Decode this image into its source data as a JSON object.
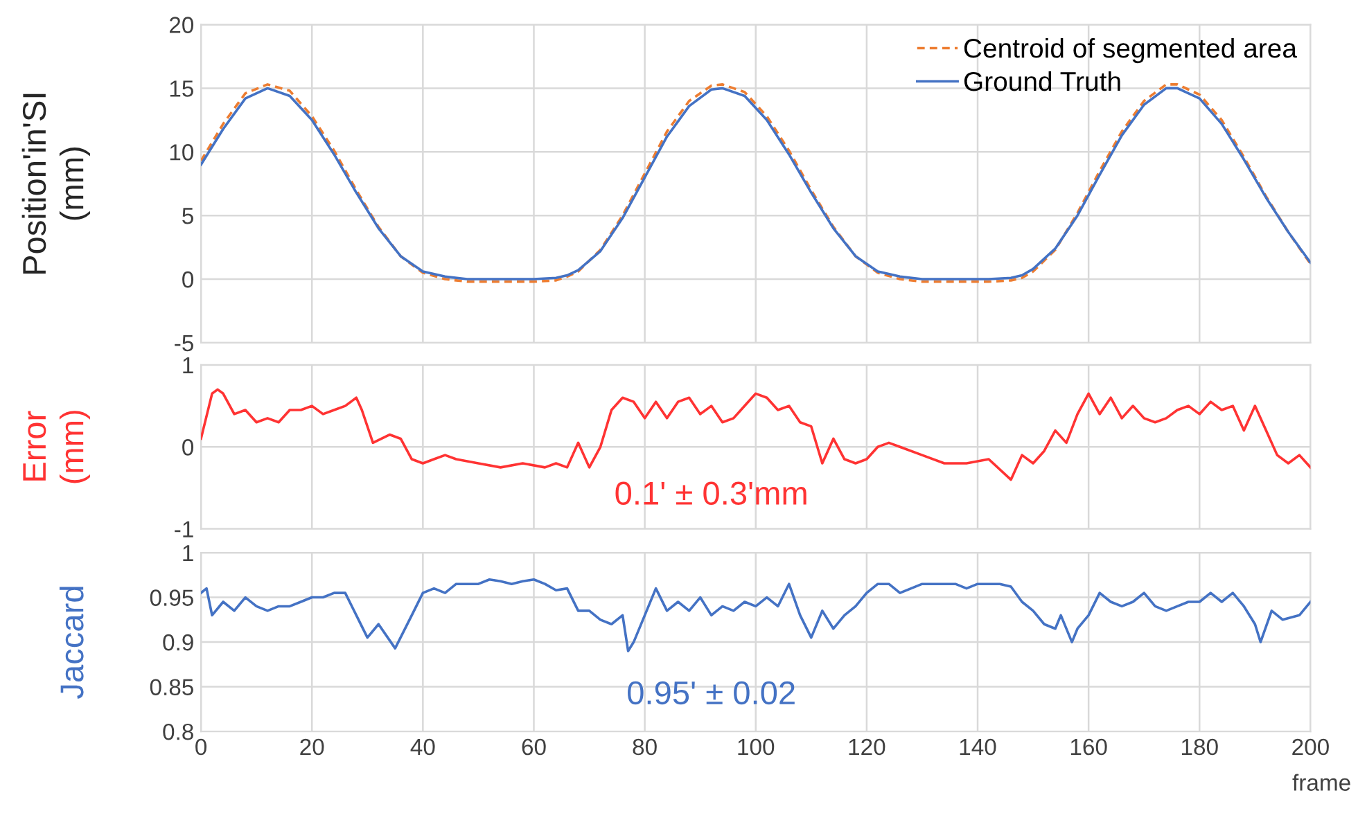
{
  "chart_data": [
    {
      "type": "line",
      "ylabel": "Position'in'SI\n(mm)",
      "legend": "top right",
      "grid": true,
      "tick_labels": "y",
      "xlim": [
        0,
        200
      ],
      "xticks": [
        0,
        20,
        40,
        60,
        80,
        100,
        120,
        140,
        160,
        180,
        200
      ],
      "ylim": [
        -5,
        20
      ],
      "yticks": [
        -5,
        0,
        5,
        10,
        15,
        20
      ],
      "x": [
        0,
        4,
        8,
        12,
        16,
        20,
        24,
        28,
        32,
        36,
        40,
        44,
        48,
        52,
        56,
        60,
        64,
        66,
        68,
        72,
        76,
        80,
        84,
        88,
        92,
        94,
        98,
        102,
        106,
        110,
        114,
        118,
        122,
        126,
        130,
        134,
        138,
        142,
        146,
        148,
        150,
        154,
        158,
        162,
        166,
        170,
        174,
        176,
        180,
        184,
        188,
        192,
        196,
        200
      ],
      "series": [
        {
          "name": "Centroid of segmented area",
          "color": "#ed7d31",
          "line_style": "dashed",
          "values": [
            9.3,
            12.2,
            14.6,
            15.3,
            14.8,
            12.8,
            10.1,
            7.0,
            4.1,
            1.8,
            0.5,
            0.0,
            -0.2,
            -0.2,
            -0.2,
            -0.2,
            -0.1,
            0.2,
            0.6,
            2.3,
            5.0,
            8.3,
            11.6,
            14.0,
            15.2,
            15.3,
            14.7,
            12.8,
            10.1,
            7.0,
            4.1,
            1.8,
            0.5,
            0.0,
            -0.2,
            -0.2,
            -0.2,
            -0.2,
            -0.1,
            0.1,
            0.6,
            2.3,
            5.2,
            8.5,
            11.6,
            14.0,
            15.3,
            15.3,
            14.5,
            12.5,
            9.6,
            6.5,
            3.7,
            1.2
          ]
        },
        {
          "name": "Ground Truth",
          "color": "#4472c4",
          "line_style": "solid",
          "values": [
            9,
            11.8,
            14.2,
            15,
            14.4,
            12.5,
            9.8,
            6.8,
            4,
            1.8,
            0.6,
            0.2,
            0,
            0,
            0,
            0,
            0.1,
            0.3,
            0.7,
            2.2,
            4.8,
            8,
            11.2,
            13.6,
            14.9,
            15,
            14.4,
            12.5,
            9.8,
            6.8,
            4,
            1.8,
            0.6,
            0.2,
            0,
            0,
            0,
            0,
            0.1,
            0.3,
            0.8,
            2.4,
            5,
            8.2,
            11.3,
            13.7,
            15,
            15,
            14.2,
            12.2,
            9.4,
            6.4,
            3.7,
            1.3
          ]
        }
      ]
    },
    {
      "type": "line",
      "ylabel": "Error\n(mm)",
      "grid": true,
      "tick_labels": "y",
      "xlim": [
        0,
        200
      ],
      "xticks": [
        0,
        20,
        40,
        60,
        80,
        100,
        120,
        140,
        160,
        180,
        200
      ],
      "ylim": [
        -1,
        1
      ],
      "yticks": [
        -1,
        0,
        1
      ],
      "annotations": [
        "0.1' ± 0.3'mm"
      ],
      "x": [
        0,
        2,
        3,
        4,
        6,
        8,
        10,
        12,
        14,
        16,
        18,
        20,
        22,
        24,
        26,
        28,
        29,
        31,
        34,
        36,
        38,
        40,
        42,
        44,
        46,
        50,
        54,
        58,
        62,
        64,
        66,
        68,
        70,
        72,
        74,
        76,
        78,
        80,
        82,
        84,
        86,
        88,
        90,
        92,
        94,
        96,
        98,
        100,
        102,
        104,
        106,
        108,
        110,
        112,
        114,
        116,
        118,
        120,
        122,
        124,
        126,
        130,
        134,
        138,
        142,
        146,
        148,
        150,
        152,
        154,
        156,
        158,
        160,
        162,
        164,
        166,
        168,
        170,
        172,
        174,
        176,
        178,
        180,
        182,
        184,
        186,
        188,
        190,
        192,
        194,
        196,
        198,
        200
      ],
      "series": [
        {
          "color": "#ff3333",
          "values": [
            0.1,
            0.65,
            0.7,
            0.65,
            0.4,
            0.45,
            0.3,
            0.35,
            0.3,
            0.45,
            0.45,
            0.5,
            0.4,
            0.45,
            0.5,
            0.6,
            0.45,
            0.05,
            0.15,
            0.1,
            -0.15,
            -0.2,
            -0.15,
            -0.1,
            -0.15,
            -0.2,
            -0.25,
            -0.2,
            -0.25,
            -0.2,
            -0.25,
            0.05,
            -0.25,
            0,
            0.45,
            0.6,
            0.55,
            0.35,
            0.55,
            0.35,
            0.55,
            0.6,
            0.4,
            0.5,
            0.3,
            0.35,
            0.5,
            0.65,
            0.6,
            0.45,
            0.5,
            0.3,
            0.25,
            -0.2,
            0.1,
            -0.15,
            -0.2,
            -0.15,
            0,
            0.05,
            0,
            -0.1,
            -0.2,
            -0.2,
            -0.15,
            -0.4,
            -0.1,
            -0.2,
            -0.05,
            0.2,
            0.05,
            0.4,
            0.65,
            0.4,
            0.6,
            0.35,
            0.5,
            0.35,
            0.3,
            0.35,
            0.45,
            0.5,
            0.4,
            0.55,
            0.45,
            0.5,
            0.2,
            0.5,
            0.2,
            -0.1,
            -0.2,
            -0.1,
            -0.25
          ]
        }
      ]
    },
    {
      "type": "line",
      "ylabel": "Jaccard",
      "xlabel": "frame",
      "grid": true,
      "xlim": [
        0,
        200
      ],
      "xticks": [
        0,
        20,
        40,
        60,
        80,
        100,
        120,
        140,
        160,
        180,
        200
      ],
      "ylim": [
        0.8,
        1
      ],
      "yticks": [
        0.8,
        0.85,
        0.9,
        0.95,
        1
      ],
      "annotations": [
        "0.95' ± 0.02"
      ],
      "x": [
        0,
        1,
        2,
        4,
        6,
        8,
        10,
        12,
        14,
        16,
        18,
        20,
        22,
        24,
        26,
        28,
        30,
        32,
        35,
        38,
        40,
        42,
        44,
        46,
        48,
        50,
        52,
        54,
        56,
        58,
        60,
        62,
        64,
        66,
        68,
        70,
        72,
        74,
        76,
        77,
        78,
        80,
        82,
        84,
        86,
        88,
        90,
        92,
        94,
        96,
        98,
        100,
        102,
        104,
        106,
        108,
        110,
        112,
        114,
        116,
        118,
        120,
        122,
        124,
        126,
        128,
        130,
        132,
        134,
        136,
        138,
        140,
        142,
        144,
        146,
        148,
        150,
        152,
        154,
        155,
        157,
        158,
        160,
        162,
        164,
        166,
        168,
        170,
        172,
        174,
        176,
        178,
        180,
        182,
        184,
        186,
        188,
        190,
        191,
        193,
        195,
        198,
        200
      ],
      "series": [
        {
          "color": "#4472c4",
          "values": [
            0.955,
            0.96,
            0.93,
            0.945,
            0.935,
            0.95,
            0.94,
            0.935,
            0.94,
            0.94,
            0.945,
            0.95,
            0.95,
            0.955,
            0.955,
            0.93,
            0.905,
            0.92,
            0.893,
            0.93,
            0.955,
            0.96,
            0.955,
            0.965,
            0.965,
            0.965,
            0.97,
            0.968,
            0.965,
            0.968,
            0.97,
            0.965,
            0.958,
            0.96,
            0.935,
            0.935,
            0.925,
            0.92,
            0.93,
            0.89,
            0.9,
            0.93,
            0.96,
            0.935,
            0.945,
            0.935,
            0.95,
            0.93,
            0.94,
            0.935,
            0.945,
            0.94,
            0.95,
            0.94,
            0.965,
            0.93,
            0.905,
            0.935,
            0.915,
            0.93,
            0.94,
            0.955,
            0.965,
            0.965,
            0.955,
            0.96,
            0.965,
            0.965,
            0.965,
            0.965,
            0.96,
            0.965,
            0.965,
            0.965,
            0.962,
            0.945,
            0.935,
            0.92,
            0.915,
            0.93,
            0.9,
            0.915,
            0.93,
            0.955,
            0.945,
            0.94,
            0.945,
            0.955,
            0.94,
            0.935,
            0.94,
            0.945,
            0.945,
            0.955,
            0.945,
            0.955,
            0.94,
            0.92,
            0.9,
            0.935,
            0.925,
            0.93,
            0.945
          ]
        }
      ]
    }
  ]
}
